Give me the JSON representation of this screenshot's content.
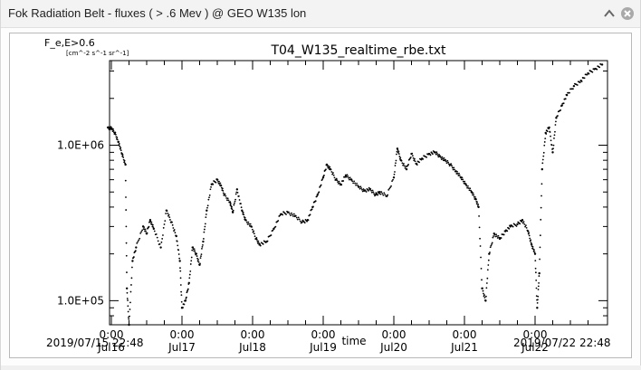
{
  "window": {
    "title": "Fok Radiation Belt - fluxes ( > .6 Mev ) @ GEO W135 lon",
    "menu_icon": "chevron-up-icon",
    "close_icon": "close-icon"
  },
  "chart_data": {
    "type": "scatter",
    "title": "T04_W135_realtime_rbe.txt",
    "ylabel": "F_e,E>0.6",
    "yunit": "[cm^-2 s^-1 sr^-1]",
    "xlabel": "time",
    "yscale": "log",
    "start_label": "2019/07/15 22:48",
    "end_label": "2019/07/22 22:48",
    "x_range_days": [
      0,
      7
    ],
    "ylim": [
      70000,
      3500000
    ],
    "y_ticks": [
      {
        "value": 1000000,
        "label": "1.0E+06"
      },
      {
        "value": 100000,
        "label": "1.0E+05"
      }
    ],
    "x_ticks": [
      {
        "day": 0,
        "time": "0:00",
        "date": "Jul16"
      },
      {
        "day": 1,
        "time": "0:00",
        "date": "Jul17"
      },
      {
        "day": 2,
        "time": "0:00",
        "date": "Jul18"
      },
      {
        "day": 3,
        "time": "0:00",
        "date": "Jul19"
      },
      {
        "day": 4,
        "time": "0:00",
        "date": "Jul20"
      },
      {
        "day": 5,
        "time": "0:00",
        "date": "Jul21"
      },
      {
        "day": 6,
        "time": "0:00",
        "date": "Jul22"
      }
    ],
    "series": [
      {
        "color": "#000000",
        "points": [
          [
            -0.05,
            1300000
          ],
          [
            0.0,
            1280000
          ],
          [
            0.05,
            1200000
          ],
          [
            0.1,
            1050000
          ],
          [
            0.15,
            880000
          ],
          [
            0.2,
            750000
          ],
          [
            0.22,
            120000
          ],
          [
            0.25,
            70000
          ],
          [
            0.3,
            180000
          ],
          [
            0.35,
            220000
          ],
          [
            0.45,
            300000
          ],
          [
            0.5,
            270000
          ],
          [
            0.55,
            330000
          ],
          [
            0.6,
            290000
          ],
          [
            0.7,
            220000
          ],
          [
            0.78,
            380000
          ],
          [
            0.85,
            320000
          ],
          [
            0.92,
            260000
          ],
          [
            0.97,
            180000
          ],
          [
            1.0,
            90000
          ],
          [
            1.05,
            100000
          ],
          [
            1.1,
            130000
          ],
          [
            1.15,
            220000
          ],
          [
            1.2,
            200000
          ],
          [
            1.25,
            170000
          ],
          [
            1.3,
            240000
          ],
          [
            1.35,
            380000
          ],
          [
            1.42,
            560000
          ],
          [
            1.5,
            600000
          ],
          [
            1.55,
            550000
          ],
          [
            1.6,
            480000
          ],
          [
            1.68,
            430000
          ],
          [
            1.72,
            370000
          ],
          [
            1.78,
            520000
          ],
          [
            1.85,
            380000
          ],
          [
            1.9,
            330000
          ],
          [
            1.98,
            300000
          ],
          [
            2.05,
            250000
          ],
          [
            2.1,
            230000
          ],
          [
            2.2,
            240000
          ],
          [
            2.3,
            290000
          ],
          [
            2.4,
            360000
          ],
          [
            2.5,
            370000
          ],
          [
            2.6,
            350000
          ],
          [
            2.7,
            320000
          ],
          [
            2.78,
            330000
          ],
          [
            2.85,
            400000
          ],
          [
            2.92,
            480000
          ],
          [
            3.0,
            620000
          ],
          [
            3.05,
            750000
          ],
          [
            3.1,
            700000
          ],
          [
            3.18,
            600000
          ],
          [
            3.25,
            560000
          ],
          [
            3.32,
            640000
          ],
          [
            3.4,
            600000
          ],
          [
            3.5,
            540000
          ],
          [
            3.58,
            510000
          ],
          [
            3.66,
            520000
          ],
          [
            3.74,
            480000
          ],
          [
            3.8,
            500000
          ],
          [
            3.9,
            470000
          ],
          [
            4.0,
            620000
          ],
          [
            4.05,
            950000
          ],
          [
            4.1,
            800000
          ],
          [
            4.18,
            700000
          ],
          [
            4.25,
            880000
          ],
          [
            4.32,
            760000
          ],
          [
            4.4,
            820000
          ],
          [
            4.5,
            880000
          ],
          [
            4.58,
            900000
          ],
          [
            4.65,
            850000
          ],
          [
            4.72,
            800000
          ],
          [
            4.8,
            750000
          ],
          [
            4.88,
            680000
          ],
          [
            4.95,
            620000
          ],
          [
            5.02,
            560000
          ],
          [
            5.1,
            500000
          ],
          [
            5.16,
            450000
          ],
          [
            5.2,
            400000
          ],
          [
            5.25,
            120000
          ],
          [
            5.3,
            100000
          ],
          [
            5.35,
            200000
          ],
          [
            5.42,
            270000
          ],
          [
            5.5,
            250000
          ],
          [
            5.58,
            280000
          ],
          [
            5.65,
            300000
          ],
          [
            5.75,
            310000
          ],
          [
            5.82,
            330000
          ],
          [
            5.9,
            280000
          ],
          [
            5.95,
            230000
          ],
          [
            6.0,
            200000
          ],
          [
            6.03,
            90000
          ],
          [
            6.06,
            150000
          ],
          [
            6.1,
            700000
          ],
          [
            6.15,
            1200000
          ],
          [
            6.2,
            1300000
          ],
          [
            6.25,
            900000
          ],
          [
            6.3,
            1500000
          ],
          [
            6.38,
            1800000
          ],
          [
            6.45,
            2100000
          ],
          [
            6.55,
            2400000
          ],
          [
            6.65,
            2600000
          ],
          [
            6.75,
            2900000
          ],
          [
            6.85,
            3100000
          ],
          [
            6.95,
            3300000
          ]
        ]
      }
    ]
  }
}
